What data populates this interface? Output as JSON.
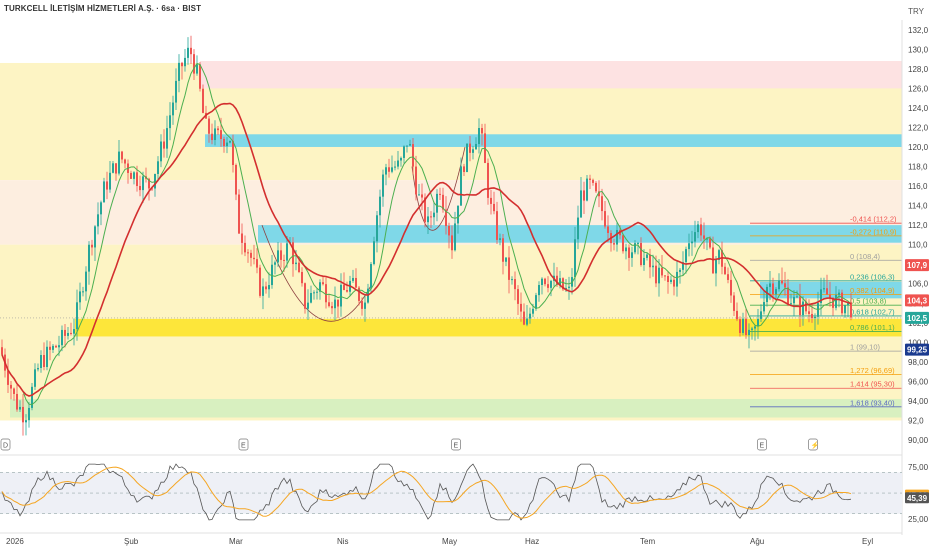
{
  "header": {
    "title": "TURKCELL İLETİŞİM HİZMETLERİ A.Ş. · 6sa · BIST",
    "currency": "TRY"
  },
  "colors": {
    "bull": "#26a69a",
    "bear": "#ef5350",
    "ma_fast": "#4caf50",
    "ma_slow": "#d32f2f",
    "rsi": "#555555",
    "rsi_ma": "#f5a623",
    "yellow_zone": "#fdf4c4",
    "pink_zone": "#fde2e2",
    "cyan_zone": "#7fd8e8",
    "green_zone": "#d8f0c0",
    "bright_yellow": "#fde63a"
  },
  "chart_data": [
    {
      "type": "candlestick",
      "title": "TURKCELL İLETİŞİM HİZMETLERİ A.Ş. · 6sa · BIST",
      "ylim": [
        90,
        133
      ],
      "y_ticks": [
        "90,00",
        "92,0",
        "94,00",
        "96,00",
        "98,00",
        "100,0",
        "102,0",
        "104,0",
        "106,0",
        "108,0",
        "110,0",
        "112,0",
        "114,0",
        "116,0",
        "118,0",
        "120,0",
        "122,0",
        "124,0",
        "126,0",
        "128,0",
        "130,0",
        "132,0"
      ],
      "x_ticks": [
        "2026",
        "Şub",
        "Mar",
        "Nis",
        "May",
        "Haz",
        "Tem",
        "Ağu",
        "Eyl"
      ],
      "price_labels": [
        {
          "text": "107,9",
          "value": 107.9,
          "color": "#ef5350"
        },
        {
          "text": "104,3",
          "value": 104.3,
          "color": "#ef5350"
        },
        {
          "text": "102,5",
          "value": 102.5,
          "color": "#26a69a"
        },
        {
          "text": "99,25",
          "value": 99.25,
          "color": "#1a3a8f"
        }
      ],
      "fib_levels": [
        {
          "ratio": "-0,414 (112,2)",
          "value": 112.2,
          "color": "#ef5350"
        },
        {
          "ratio": "-0,272 (110,9)",
          "value": 110.9,
          "color": "#f59e0b"
        },
        {
          "ratio": "0 (108,4)",
          "value": 108.4,
          "color": "#9e9e9e"
        },
        {
          "ratio": "0,236 (106,3)",
          "value": 106.3,
          "color": "#26a69a"
        },
        {
          "ratio": "0,382 (104,9)",
          "value": 104.9,
          "color": "#f59e0b"
        },
        {
          "ratio": "0,5 (103,8)",
          "value": 103.8,
          "color": "#4caf50"
        },
        {
          "ratio": "0,618 (102,7)",
          "value": 102.7,
          "color": "#26a69a"
        },
        {
          "ratio": "0,786 (101,1)",
          "value": 101.1,
          "color": "#4caf50"
        },
        {
          "ratio": "1 (99,10)",
          "value": 99.1,
          "color": "#9e9e9e"
        },
        {
          "ratio": "1,272 (96,69)",
          "value": 96.69,
          "color": "#f59e0b"
        },
        {
          "ratio": "1,414 (95,30)",
          "value": 95.3,
          "color": "#ef5350"
        },
        {
          "ratio": "1,618 (93,40)",
          "value": 93.4,
          "color": "#5c6bc0"
        }
      ],
      "events": [
        {
          "label": "D",
          "x_frac": 0.0
        },
        {
          "label": "E",
          "x_frac": 0.28
        },
        {
          "label": "E",
          "x_frac": 0.53
        },
        {
          "label": "E",
          "x_frac": 0.89
        },
        {
          "label": "⚡",
          "x_frac": 0.95
        }
      ]
    },
    {
      "type": "line",
      "name": "RSI",
      "ylim": [
        22,
        80
      ],
      "y_ticks": [
        "25,00",
        "50,00",
        "75,00"
      ],
      "value_labels": [
        {
          "text": "47,93",
          "value": 47.93,
          "color": "#f5a623"
        },
        {
          "text": "45,39",
          "value": 45.39,
          "color": "#555555"
        }
      ]
    }
  ]
}
